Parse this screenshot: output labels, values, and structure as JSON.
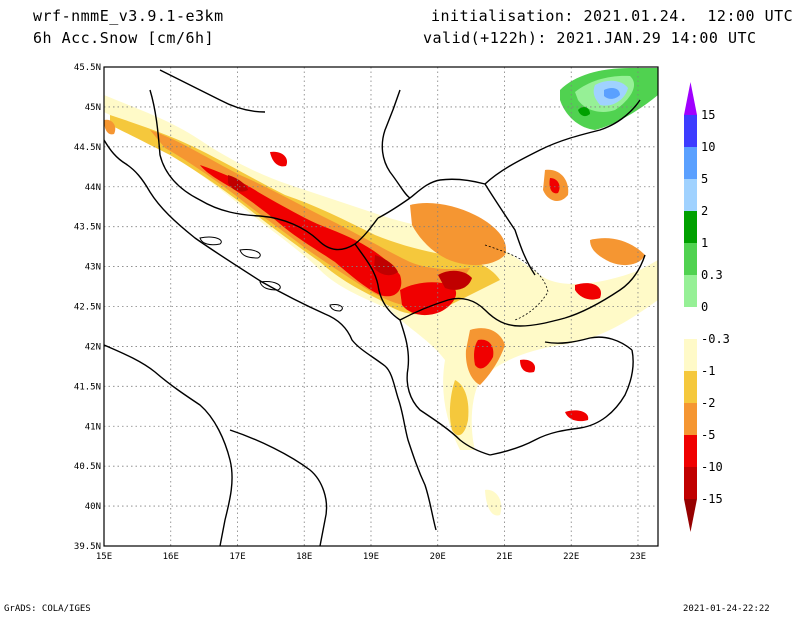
{
  "header": {
    "model": "wrf-nmmE_v3.9.1-e3km",
    "field": "6h Acc.Snow [cm/6h]",
    "init": "initialisation: 2021.01.24.  12:00 UTC",
    "valid": "valid(+122h): 2021.JAN.29 14:00 UTC"
  },
  "footer": {
    "credit": "GrADS: COLA/IGES",
    "stamp": "2021-01-24-22:22"
  },
  "axes": {
    "lon_labels": [
      "15E",
      "16E",
      "17E",
      "18E",
      "19E",
      "20E",
      "21E",
      "22E",
      "23E"
    ],
    "lat_labels": [
      "45.5N",
      "45N",
      "44.5N",
      "44N",
      "43.5N",
      "43N",
      "42.5N",
      "42N",
      "41.5N",
      "41N",
      "40.5N",
      "40N",
      "39.5N"
    ],
    "lon_range": [
      15,
      23.3
    ],
    "lat_range": [
      39.5,
      45.5
    ],
    "grid": "dotted"
  },
  "legend": {
    "labels": [
      "15",
      "10",
      "5",
      "2",
      "1",
      "0.3",
      "0",
      "-0.3",
      "-1",
      "-2",
      "-5",
      "-10",
      "-15"
    ],
    "colors": [
      "#a000ff",
      "#3c3cff",
      "#5aa0ff",
      "#a0d2ff",
      "#00a000",
      "#50d250",
      "#96f096",
      "#ffffff",
      "#fffac8",
      "#f5c83c",
      "#f59632",
      "#f00000",
      "#c00000",
      "#960000"
    ]
  },
  "colors": {
    "frame": "#000000",
    "coast": "#000000"
  }
}
